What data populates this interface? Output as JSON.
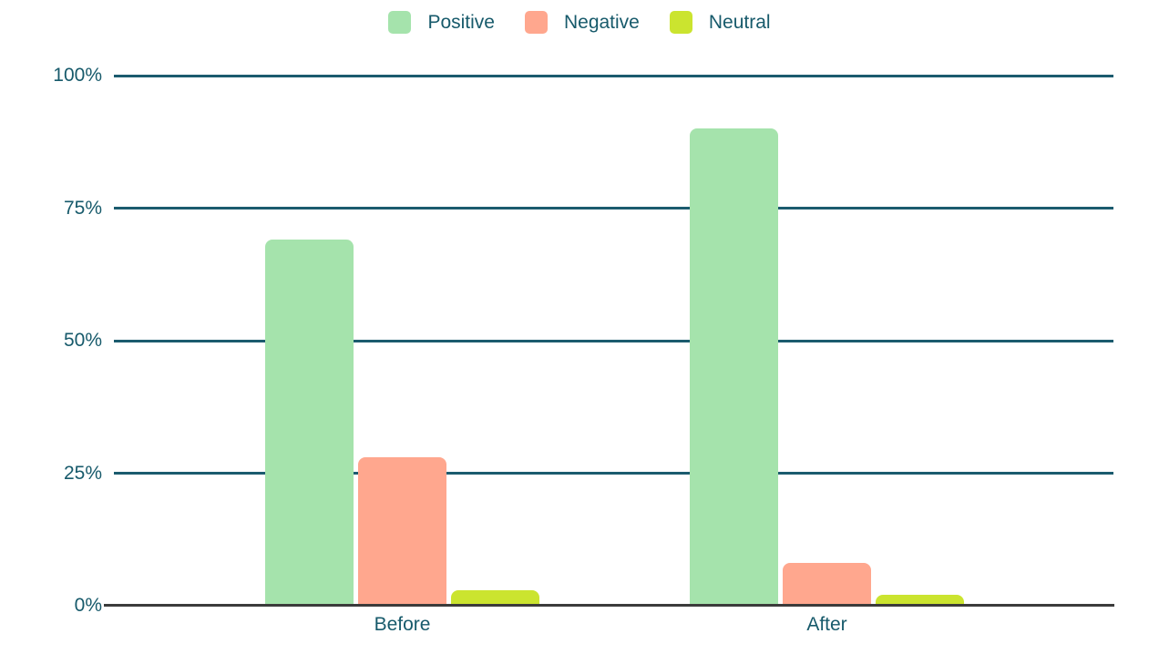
{
  "chart_data": {
    "type": "bar",
    "title": "",
    "categories": [
      "Before",
      "After"
    ],
    "series": [
      {
        "name": "Positive",
        "color": "#a5e3ac",
        "values": [
          69,
          90
        ]
      },
      {
        "name": "Negative",
        "color": "#ffa78e",
        "values": [
          28,
          8
        ]
      },
      {
        "name": "Neutral",
        "color": "#cbe42f",
        "values": [
          3,
          2
        ]
      }
    ],
    "y_ticks": [
      {
        "label": "0%",
        "value": 0
      },
      {
        "label": "25%",
        "value": 25
      },
      {
        "label": "50%",
        "value": 50
      },
      {
        "label": "75%",
        "value": 75
      },
      {
        "label": "100%",
        "value": 100
      }
    ],
    "ylim": [
      0,
      100
    ],
    "grid": true,
    "legend_position": "top"
  },
  "colors": {
    "axis_text": "#175a6b",
    "gridline": "#1b5b6e",
    "baseline": "#3b3b3b",
    "background": "#ffffff"
  }
}
